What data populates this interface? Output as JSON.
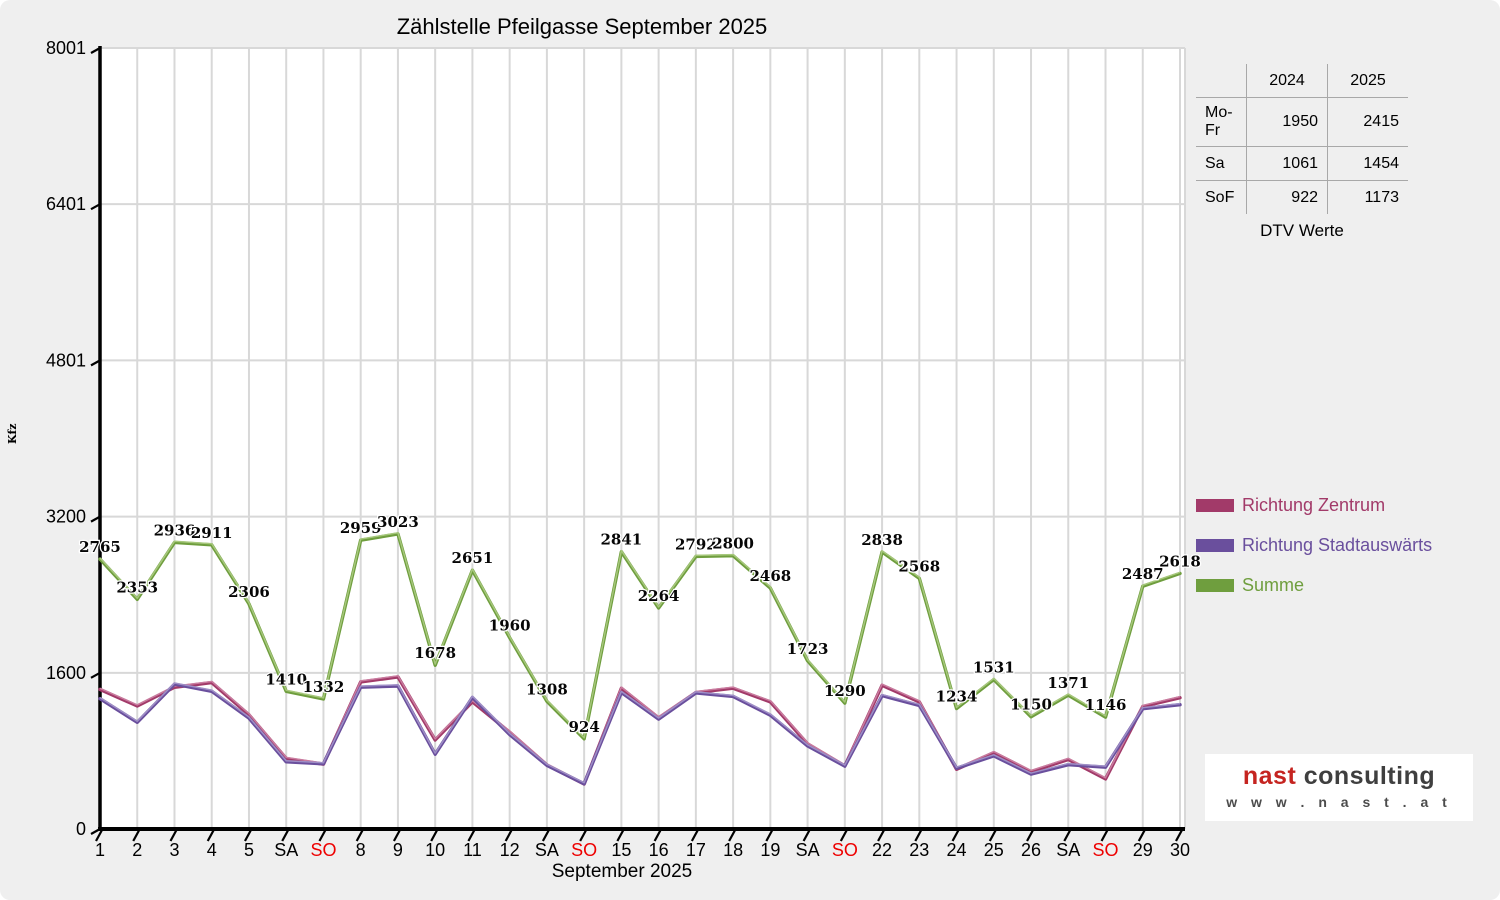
{
  "title": "Zählstelle Pfeilgasse September 2025",
  "y_axis": {
    "label": "Kfz",
    "ticks": [
      "0",
      "1600",
      "3200",
      "4801",
      "6401",
      "8001"
    ],
    "tick_values": [
      0,
      1600,
      3200,
      4801,
      6401,
      8001
    ]
  },
  "x_axis": {
    "caption": "September 2025",
    "sunday_color": "#ee0000",
    "weekday_color": "#000000"
  },
  "chart_data": {
    "type": "line",
    "title": "Zählstelle Pfeilgasse September 2025",
    "xlabel": "September 2025",
    "ylabel": "Kfz",
    "ylim": [
      0,
      8001
    ],
    "grid": true,
    "legend_position": "right",
    "categories": [
      "1",
      "2",
      "3",
      "4",
      "5",
      "SA",
      "SO",
      "8",
      "9",
      "10",
      "11",
      "12",
      "SA",
      "SO",
      "15",
      "16",
      "17",
      "18",
      "19",
      "SA",
      "SO",
      "22",
      "23",
      "24",
      "25",
      "26",
      "SA",
      "SO",
      "29",
      "30"
    ],
    "series": [
      {
        "name": "Richtung Zentrum",
        "color": "#a23a69",
        "highlight": "#cb7fa2",
        "labeled": false,
        "values": [
          1430,
          1260,
          1452,
          1500,
          1170,
          722,
          664,
          1506,
          1558,
          912,
          1303,
          992,
          656,
          461,
          1442,
          1138,
          1398,
          1442,
          1302,
          872,
          646,
          1472,
          1302,
          612,
          782,
          588,
          712,
          513,
          1255,
          1345
        ]
      },
      {
        "name": "Richtung Stadtauswärts",
        "color": "#6a4f9d",
        "highlight": "#a191c8",
        "labeled": false,
        "values": [
          1335,
          1093,
          1484,
          1411,
          1136,
          688,
          668,
          1453,
          1465,
          766,
          1348,
          968,
          652,
          463,
          1399,
          1126,
          1394,
          1358,
          1166,
          851,
          644,
          1366,
          1266,
          622,
          749,
          562,
          659,
          633,
          1232,
          1273
        ]
      },
      {
        "name": "Summe",
        "color": "#6f9e3e",
        "highlight": "#a9c97e",
        "labeled": true,
        "values": [
          2765,
          2353,
          2936,
          2911,
          2306,
          1410,
          1332,
          2959,
          3023,
          1678,
          2651,
          1960,
          1308,
          924,
          2841,
          2264,
          2792,
          2800,
          2468,
          1723,
          1290,
          2838,
          2568,
          1234,
          1531,
          1150,
          1371,
          1146,
          2487,
          2618
        ]
      }
    ]
  },
  "table": {
    "col_headers": [
      "2024",
      "2025"
    ],
    "rows": [
      {
        "label": "Mo-Fr",
        "y2024": "1950",
        "y2025": "2415"
      },
      {
        "label": "Sa",
        "y2024": "1061",
        "y2025": "1454"
      },
      {
        "label": "SoF",
        "y2024": "922",
        "y2025": "1173"
      }
    ],
    "caption": "DTV Werte"
  },
  "logo": {
    "brand_red": "nast",
    "brand_gray": "consulting",
    "url": "w w w . n a s t . a t",
    "red_color": "#c52420",
    "gray_color": "#3f3f3f",
    "url_color": "#4c4c4c"
  }
}
